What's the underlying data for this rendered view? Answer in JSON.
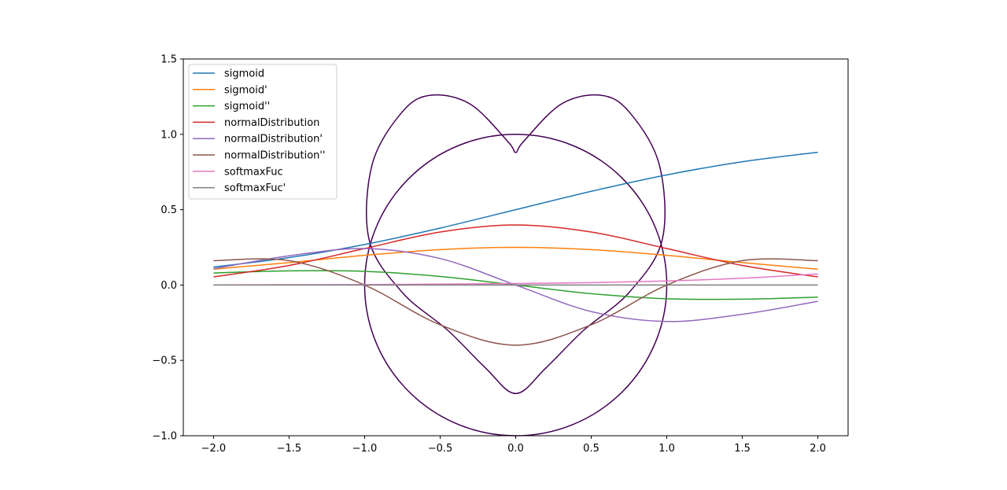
{
  "chart_data": {
    "type": "line",
    "title": "",
    "xlabel": "",
    "ylabel": "",
    "xlim": [
      -2.2,
      2.2
    ],
    "ylim": [
      -1.0,
      1.5
    ],
    "grid": false,
    "legend_position": "top-left",
    "x_ticks": [
      {
        "value": -2.0,
        "label": "−2.0"
      },
      {
        "value": -1.5,
        "label": "−1.5"
      },
      {
        "value": -1.0,
        "label": "−1.0"
      },
      {
        "value": -0.5,
        "label": "−0.5"
      },
      {
        "value": 0.0,
        "label": "0.0"
      },
      {
        "value": 0.5,
        "label": "0.5"
      },
      {
        "value": 1.0,
        "label": "1.0"
      },
      {
        "value": 1.5,
        "label": "1.5"
      },
      {
        "value": 2.0,
        "label": "2.0"
      }
    ],
    "y_ticks": [
      {
        "value": -1.0,
        "label": "−1.0"
      },
      {
        "value": -0.5,
        "label": "−0.5"
      },
      {
        "value": 0.0,
        "label": "0.0"
      },
      {
        "value": 0.5,
        "label": "0.5"
      },
      {
        "value": 1.0,
        "label": "1.0"
      },
      {
        "value": 1.5,
        "label": "1.5"
      }
    ],
    "series": [
      {
        "name": "sigmoid",
        "color": "#1f77b4",
        "x": [
          -2.0,
          -1.5,
          -1.0,
          -0.5,
          0.0,
          0.5,
          1.0,
          1.5,
          2.0
        ],
        "y": [
          0.119,
          0.182,
          0.269,
          0.378,
          0.5,
          0.622,
          0.731,
          0.818,
          0.881
        ]
      },
      {
        "name": "sigmoid'",
        "color": "#ff7f0e",
        "x": [
          -2.0,
          -1.5,
          -1.0,
          -0.5,
          0.0,
          0.5,
          1.0,
          1.5,
          2.0
        ],
        "y": [
          0.105,
          0.149,
          0.197,
          0.235,
          0.25,
          0.235,
          0.197,
          0.149,
          0.105
        ]
      },
      {
        "name": "sigmoid''",
        "color": "#2ca02c",
        "x": [
          -2.0,
          -1.5,
          -1.0,
          -0.5,
          0.0,
          0.5,
          1.0,
          1.5,
          2.0
        ],
        "y": [
          0.08,
          0.094,
          0.091,
          0.057,
          0.0,
          -0.057,
          -0.091,
          -0.094,
          -0.08
        ]
      },
      {
        "name": "normalDistribution",
        "color": "#d62728",
        "x": [
          -2.0,
          -1.5,
          -1.0,
          -0.5,
          0.0,
          0.5,
          1.0,
          1.5,
          2.0
        ],
        "y": [
          0.054,
          0.13,
          0.242,
          0.352,
          0.399,
          0.352,
          0.242,
          0.13,
          0.054
        ]
      },
      {
        "name": "normalDistribution'",
        "color": "#9467bd",
        "x": [
          -2.0,
          -1.5,
          -1.0,
          -0.5,
          0.0,
          0.5,
          1.0,
          1.5,
          2.0
        ],
        "y": [
          0.108,
          0.194,
          0.242,
          0.176,
          0.0,
          -0.176,
          -0.242,
          -0.194,
          -0.108
        ]
      },
      {
        "name": "normalDistribution''",
        "color": "#8c564b",
        "x": [
          -2.0,
          -1.5,
          -1.0,
          -0.5,
          0.0,
          0.5,
          1.0,
          1.5,
          2.0
        ],
        "y": [
          0.162,
          0.162,
          0.0,
          -0.264,
          -0.399,
          -0.264,
          0.0,
          0.162,
          0.162
        ]
      },
      {
        "name": "softmaxFuc",
        "color": "#e377c2",
        "x": [
          -2.0,
          -1.5,
          -1.0,
          -0.5,
          0.0,
          0.5,
          1.0,
          1.5,
          2.0
        ],
        "y": [
          0.001,
          0.002,
          0.003,
          0.006,
          0.01,
          0.016,
          0.027,
          0.045,
          0.074
        ]
      },
      {
        "name": "softmaxFuc'",
        "color": "#7f7f7f",
        "x": [
          -2.0,
          -1.5,
          -1.0,
          -0.5,
          0.0,
          0.5,
          1.0,
          1.5,
          2.0
        ],
        "y": [
          0.0,
          0.0,
          0.0,
          0.0,
          0.0,
          0.0,
          0.0,
          0.0,
          0.0
        ]
      }
    ],
    "curves": [
      {
        "shape": "heart",
        "color": "#440154",
        "x": [
          0.0,
          0.2,
          0.45,
          0.75,
          0.97,
          0.95,
          0.75,
          0.56,
          0.3,
          0.05,
          0.0,
          -0.05,
          -0.3,
          -0.56,
          -0.75,
          -0.95,
          -0.97,
          -0.75,
          -0.45,
          -0.2,
          0.0
        ],
        "y": [
          -0.72,
          -0.55,
          -0.3,
          -0.05,
          0.3,
          0.8,
          1.15,
          1.26,
          1.2,
          0.95,
          0.88,
          0.95,
          1.2,
          1.26,
          1.15,
          0.8,
          0.3,
          -0.05,
          -0.3,
          -0.55,
          -0.72
        ]
      },
      {
        "shape": "circle",
        "color": "#440154",
        "center": [
          0.0,
          0.0
        ],
        "radius": 1.0
      }
    ]
  }
}
